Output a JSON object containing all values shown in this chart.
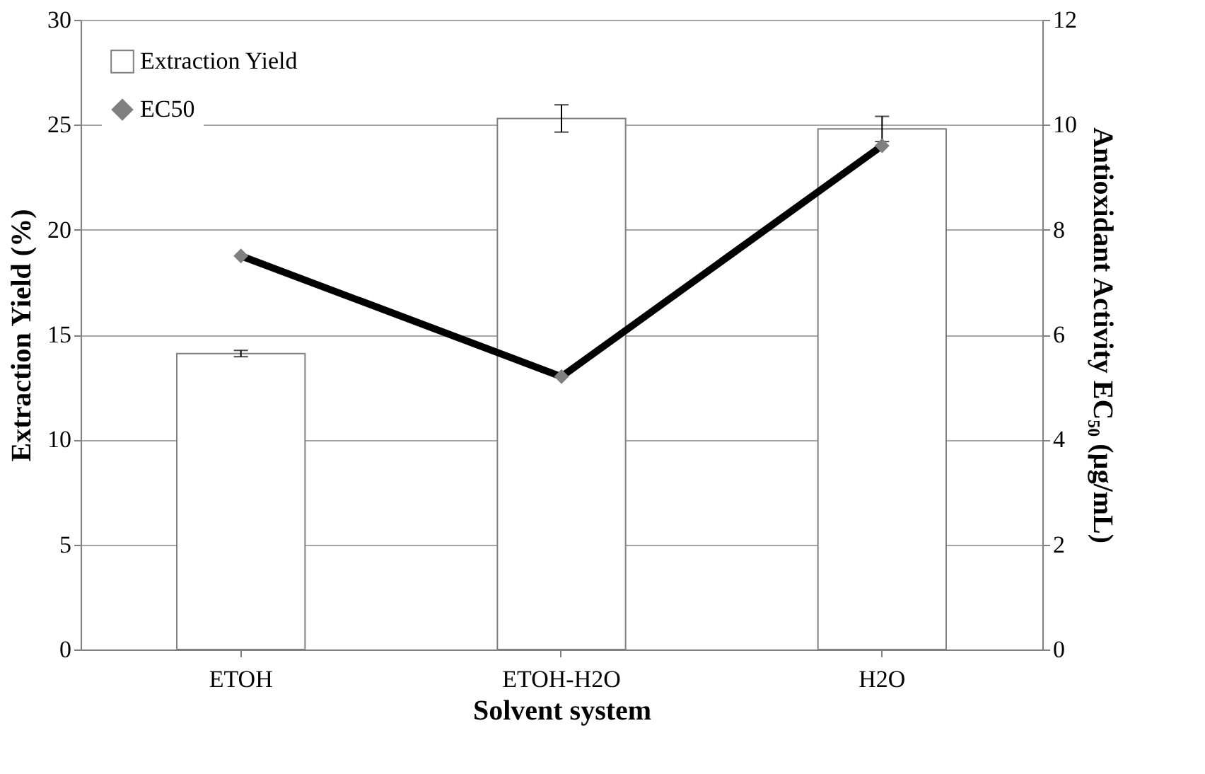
{
  "chart_data": {
    "type": "bar",
    "xlabel": "Solvent system",
    "ylabel": "Extraction Yield (%)",
    "y2label": "Antioxidant Activity EC₅₀ (µg/mL)",
    "categories": [
      "ETOH",
      "ETOH-H2O",
      "H2O"
    ],
    "series": [
      {
        "name": "Extraction Yield",
        "color": "#ffffff",
        "values": [
          14.1,
          25.3,
          24.8
        ],
        "errors": [
          0.15,
          0.65,
          0.6
        ]
      },
      {
        "name": "EC50",
        "type": "line",
        "axis": "y2",
        "color": "#000000",
        "marker": "diamond",
        "values": [
          7.5,
          5.2,
          9.6
        ]
      }
    ],
    "ylim": [
      0,
      30
    ],
    "yticks": [
      0,
      5,
      10,
      15,
      20,
      25,
      30
    ],
    "y2lim": [
      0,
      12
    ],
    "y2ticks": [
      0,
      2,
      4,
      6,
      8,
      10,
      12
    ],
    "grid": "y",
    "legend": "top left"
  }
}
